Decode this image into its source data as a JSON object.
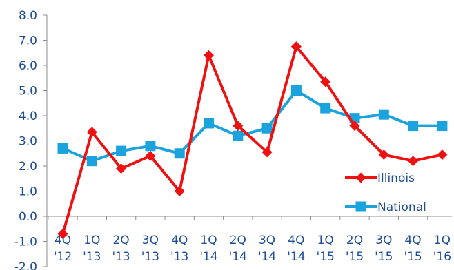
{
  "chart_data": {
    "type": "line",
    "title": "",
    "xlabel": "",
    "ylabel": "",
    "ylim": [
      -2.0,
      8.0
    ],
    "y_ticks": [
      "8.0",
      "7.0",
      "6.0",
      "5.0",
      "4.0",
      "3.0",
      "2.0",
      "1.0",
      "0.0",
      "-1.0",
      "-2.0"
    ],
    "y_tick_values": [
      8,
      7,
      6,
      5,
      4,
      3,
      2,
      1,
      0,
      -1,
      -2
    ],
    "categories": [
      [
        "4Q",
        "'12"
      ],
      [
        "1Q",
        "'13"
      ],
      [
        "2Q",
        "'13"
      ],
      [
        "3Q",
        "'13"
      ],
      [
        "4Q",
        "'13"
      ],
      [
        "1Q",
        "'14"
      ],
      [
        "2Q",
        "'14"
      ],
      [
        "3Q",
        "'14"
      ],
      [
        "4Q",
        "'14"
      ],
      [
        "1Q",
        "'15"
      ],
      [
        "2Q",
        "'15"
      ],
      [
        "3Q",
        "'15"
      ],
      [
        "4Q",
        "'15"
      ],
      [
        "1Q",
        "'16"
      ]
    ],
    "grid": false,
    "legend_position": "bottom-right",
    "series": [
      {
        "name": "Illinois",
        "color": "#ee1111",
        "marker": "diamond",
        "values": [
          -0.7,
          3.35,
          1.9,
          2.4,
          1.0,
          6.4,
          3.6,
          2.55,
          6.75,
          5.35,
          3.6,
          2.45,
          2.2,
          2.45
        ]
      },
      {
        "name": "National",
        "color": "#1aa3dd",
        "marker": "square",
        "values": [
          2.7,
          2.2,
          2.6,
          2.8,
          2.5,
          3.7,
          3.2,
          3.5,
          5.0,
          4.3,
          3.9,
          4.05,
          3.6,
          3.6
        ]
      }
    ]
  }
}
